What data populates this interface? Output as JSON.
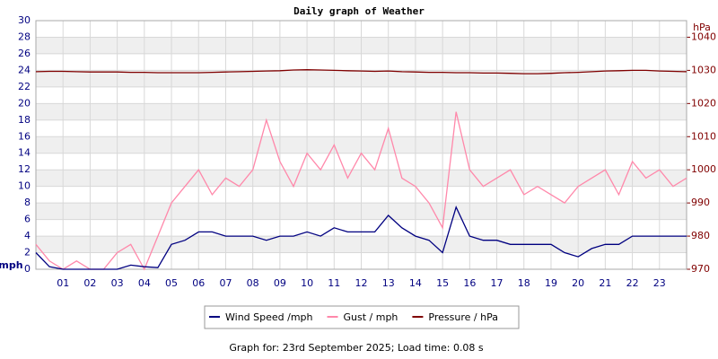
{
  "chart_data": {
    "type": "line",
    "title": "Daily graph of Weather",
    "y_label": "mph",
    "y2_label": "hPa",
    "footer": "Graph for: 23rd September 2025; Load time: 0.08 s",
    "x": [
      0,
      0.5,
      1,
      1.5,
      2,
      2.5,
      3,
      3.5,
      4,
      4.5,
      5,
      5.5,
      6,
      6.5,
      7,
      7.5,
      8,
      8.5,
      9,
      9.5,
      10,
      10.5,
      11,
      11.5,
      12,
      12.5,
      13,
      13.5,
      14,
      14.5,
      15,
      15.5,
      16,
      16.5,
      17,
      17.5,
      18,
      18.5,
      19,
      19.5,
      20,
      20.5,
      21,
      21.5,
      22,
      22.5,
      23,
      23.5,
      24
    ],
    "xlim": [
      0,
      24
    ],
    "xticks": [
      {
        "value": 1,
        "label": "01"
      },
      {
        "value": 2,
        "label": "02"
      },
      {
        "value": 3,
        "label": "03"
      },
      {
        "value": 4,
        "label": "04"
      },
      {
        "value": 5,
        "label": "05"
      },
      {
        "value": 6,
        "label": "06"
      },
      {
        "value": 7,
        "label": "07"
      },
      {
        "value": 8,
        "label": "08"
      },
      {
        "value": 9,
        "label": "09"
      },
      10,
      11,
      12,
      13,
      14,
      15,
      16,
      17,
      18,
      19,
      20,
      21,
      22,
      23
    ],
    "ylim": [
      0,
      30
    ],
    "yticks": [
      0,
      2,
      4,
      6,
      8,
      10,
      12,
      14,
      16,
      18,
      20,
      22,
      24,
      26,
      28,
      30
    ],
    "y2lim": [
      970,
      1045
    ],
    "y2ticks": [
      970,
      980,
      990,
      1000,
      1010,
      1020,
      1030,
      1040
    ],
    "grid": true,
    "series": [
      {
        "name": "Wind Speed /mph",
        "color": "#000080",
        "values": [
          2,
          0.3,
          0,
          0,
          0,
          0,
          0,
          0.5,
          0.3,
          0.2,
          3,
          3.5,
          4.5,
          4.5,
          4,
          4,
          4,
          3.5,
          4,
          4,
          4.5,
          4,
          5,
          4.5,
          4.5,
          4.5,
          6.5,
          5,
          4,
          3.5,
          2,
          7.5,
          4,
          3.5,
          3.5,
          3,
          3,
          3,
          3,
          2,
          1.5,
          2.5,
          3,
          3,
          4,
          4,
          4,
          4,
          4
        ]
      },
      {
        "name": "Gust / mph",
        "color": "#ff88aa",
        "values": [
          3,
          1,
          0,
          1,
          0,
          0,
          2,
          3,
          0,
          4,
          8,
          10,
          12,
          9,
          11,
          10,
          12,
          18,
          13,
          10,
          14,
          12,
          15,
          11,
          14,
          12,
          17,
          11,
          10,
          8,
          5,
          19,
          12,
          10,
          11,
          12,
          9,
          10,
          9,
          8,
          10,
          11,
          12,
          9,
          13,
          11,
          12,
          10,
          11
        ]
      },
      {
        "name": "Pressure / hPa",
        "color": "#800000",
        "axis": "y2",
        "values": [
          1029.6,
          1029.7,
          1029.7,
          1029.6,
          1029.5,
          1029.5,
          1029.5,
          1029.4,
          1029.4,
          1029.3,
          1029.3,
          1029.3,
          1029.3,
          1029.4,
          1029.5,
          1029.6,
          1029.7,
          1029.8,
          1029.9,
          1030.1,
          1030.2,
          1030.1,
          1030.0,
          1029.9,
          1029.8,
          1029.7,
          1029.8,
          1029.6,
          1029.5,
          1029.4,
          1029.4,
          1029.3,
          1029.3,
          1029.2,
          1029.2,
          1029.1,
          1029.0,
          1029.0,
          1029.1,
          1029.3,
          1029.4,
          1029.6,
          1029.8,
          1029.9,
          1030.0,
          1030.0,
          1029.8,
          1029.7,
          1029.6
        ]
      }
    ]
  }
}
